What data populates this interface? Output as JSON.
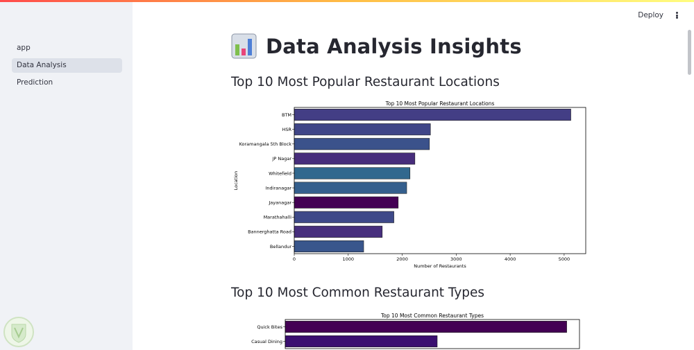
{
  "header": {
    "deploy_label": "Deploy"
  },
  "sidebar": {
    "items": [
      {
        "label": "app",
        "active": false
      },
      {
        "label": "Data Analysis",
        "active": true
      },
      {
        "label": "Prediction",
        "active": false
      }
    ]
  },
  "main": {
    "title": "Data Analysis Insights",
    "title_icon": "bar-chart-icon",
    "sections": [
      {
        "heading": "Top 10 Most Popular Restaurant Locations"
      },
      {
        "heading": "Top 10 Most Common Restaurant Types"
      }
    ]
  },
  "chart_data": [
    {
      "type": "bar",
      "orientation": "horizontal",
      "title": "Top 10 Most Popular Restaurant Locations",
      "xlabel": "Number of Restaurants",
      "ylabel": "Location",
      "categories": [
        "BTM",
        "HSR",
        "Koramangala 5th Block",
        "JP Nagar",
        "Whitefield",
        "Indiranagar",
        "Jayanagar",
        "Marathahalli",
        "Bannerghatta Road",
        "Bellandur"
      ],
      "values": [
        5124,
        2523,
        2504,
        2235,
        2144,
        2083,
        1926,
        1846,
        1630,
        1286
      ],
      "colors": [
        "#433e85",
        "#404688",
        "#3b528b",
        "#472d7b",
        "#31688e",
        "#355f8d",
        "#440154",
        "#3e4989",
        "#472f7d",
        "#39568c"
      ],
      "xlim": [
        0,
        5400
      ],
      "xticks": [
        0,
        1000,
        2000,
        3000,
        4000,
        5000
      ]
    },
    {
      "type": "bar",
      "orientation": "horizontal",
      "title": "Top 10 Most Common Restaurant Types",
      "categories": [
        "Quick Bites",
        "Casual Dining"
      ],
      "values": [
        19132,
        10330
      ],
      "colors": [
        "#440154",
        "#3b0f70"
      ],
      "xlim": [
        0,
        20000
      ]
    }
  ]
}
